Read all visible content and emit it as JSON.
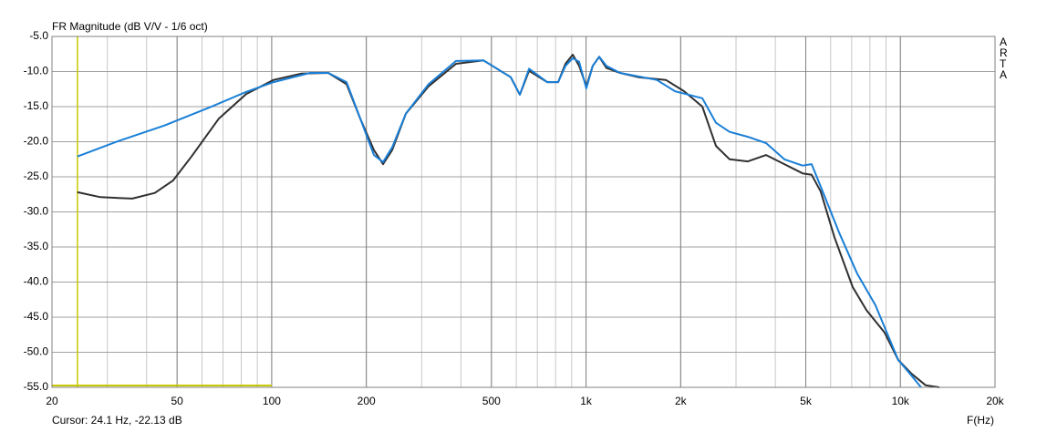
{
  "chart_data": {
    "type": "line",
    "title": "FR Magnitude (dB V/V - 1/6 oct)",
    "x_label": "F(Hz)",
    "brand": "ARTA",
    "cursor": {
      "label": "Cursor: 24.1 Hz, -22.13 dB",
      "x": 24.1,
      "y": -22.13,
      "color": "#c8c800"
    },
    "log_x": true,
    "grid": true,
    "xlim": [
      20,
      20000
    ],
    "ylim": [
      -55,
      -5
    ],
    "xticks": [
      20,
      50,
      100,
      200,
      500,
      {
        "value": 1000,
        "label": "1k"
      },
      {
        "value": 2000,
        "label": "2k"
      },
      {
        "value": 5000,
        "label": "5k"
      },
      {
        "value": 10000,
        "label": "10k"
      },
      {
        "value": 20000,
        "label": "20k"
      }
    ],
    "yticks": [
      {
        "value": -5,
        "label": "-5.0"
      },
      {
        "value": -10,
        "label": "-10.0"
      },
      {
        "value": -15,
        "label": "-15.0"
      },
      {
        "value": -20,
        "label": "-20.0"
      },
      {
        "value": -25,
        "label": "-25.0"
      },
      {
        "value": -30,
        "label": "-30.0"
      },
      {
        "value": -35,
        "label": "-35.0"
      },
      {
        "value": -40,
        "label": "-40.0"
      },
      {
        "value": -45,
        "label": "-45.0"
      },
      {
        "value": -50,
        "label": "-50.0"
      },
      {
        "value": -55,
        "label": "-55.0"
      }
    ],
    "series": [
      {
        "color": "#303030",
        "x": [
          24.1,
          28.5,
          36,
          42.5,
          48.6,
          55.6,
          67.9,
          83,
          101.4,
          123.9,
          151.4,
          173.1,
          191.3,
          211.4,
          226,
          241.7,
          267.2,
          315.6,
          385.8,
          471.5,
          576.1,
          615.9,
          658.6,
          752.6,
          815.1,
          860,
          907.1,
          950.5,
          1002,
          1050,
          1101,
          1161,
          1283,
          1467,
          1794,
          2051,
          2344,
          2589,
          2862,
          3271,
          3739,
          4273,
          4884,
          5220,
          5579,
          6168,
          7049,
          7796,
          8907,
          9844,
          10881,
          12027,
          13294
        ],
        "values": [
          -27.2,
          -27.9,
          -28.1,
          -27.3,
          -25.5,
          -22.1,
          -16.7,
          -13.2,
          -11.2,
          -10.3,
          -10.2,
          -11.8,
          -16.7,
          -21.2,
          -23.2,
          -21.2,
          -16.0,
          -12.1,
          -8.9,
          -8.4,
          -10.8,
          -13.3,
          -9.9,
          -11.5,
          -11.5,
          -8.9,
          -7.6,
          -9.2,
          -12.1,
          -9.2,
          -7.9,
          -9.5,
          -10.2,
          -10.8,
          -11.2,
          -12.8,
          -15.0,
          -20.6,
          -22.5,
          -22.8,
          -21.9,
          -23.2,
          -24.5,
          -24.7,
          -27.1,
          -33.6,
          -40.7,
          -44.0,
          -47.2,
          -51.1,
          -53.1,
          -54.7,
          -55.0
        ]
      },
      {
        "color": "#1a7fd6",
        "x": [
          24.1,
          32.6,
          45.5,
          63.5,
          83,
          101.4,
          132.4,
          151.4,
          173.1,
          191.3,
          211.4,
          226,
          241.7,
          267.2,
          315.6,
          385.8,
          471.5,
          576.1,
          615.9,
          658.6,
          752.6,
          815.1,
          860,
          907.1,
          950.5,
          1002,
          1050,
          1101,
          1161,
          1283,
          1678,
          1918,
          2344,
          2589,
          2862,
          3271,
          3739,
          4273,
          4884,
          5220,
          5579,
          6378,
          7289,
          8333,
          9844,
          10881,
          11632
        ],
        "values": [
          -22.1,
          -19.9,
          -17.7,
          -15.1,
          -12.9,
          -11.5,
          -10.2,
          -10.2,
          -11.5,
          -16.7,
          -21.9,
          -22.9,
          -20.8,
          -16.0,
          -11.8,
          -8.5,
          -8.4,
          -10.8,
          -13.3,
          -9.6,
          -11.5,
          -11.5,
          -9.2,
          -8.1,
          -8.6,
          -12.4,
          -9.2,
          -7.9,
          -9.2,
          -10.2,
          -11.2,
          -12.8,
          -13.8,
          -17.3,
          -18.6,
          -19.3,
          -20.2,
          -22.5,
          -23.4,
          -23.2,
          -26.4,
          -32.9,
          -38.8,
          -43.3,
          -51.1,
          -53.4,
          -55.0
        ]
      }
    ]
  }
}
